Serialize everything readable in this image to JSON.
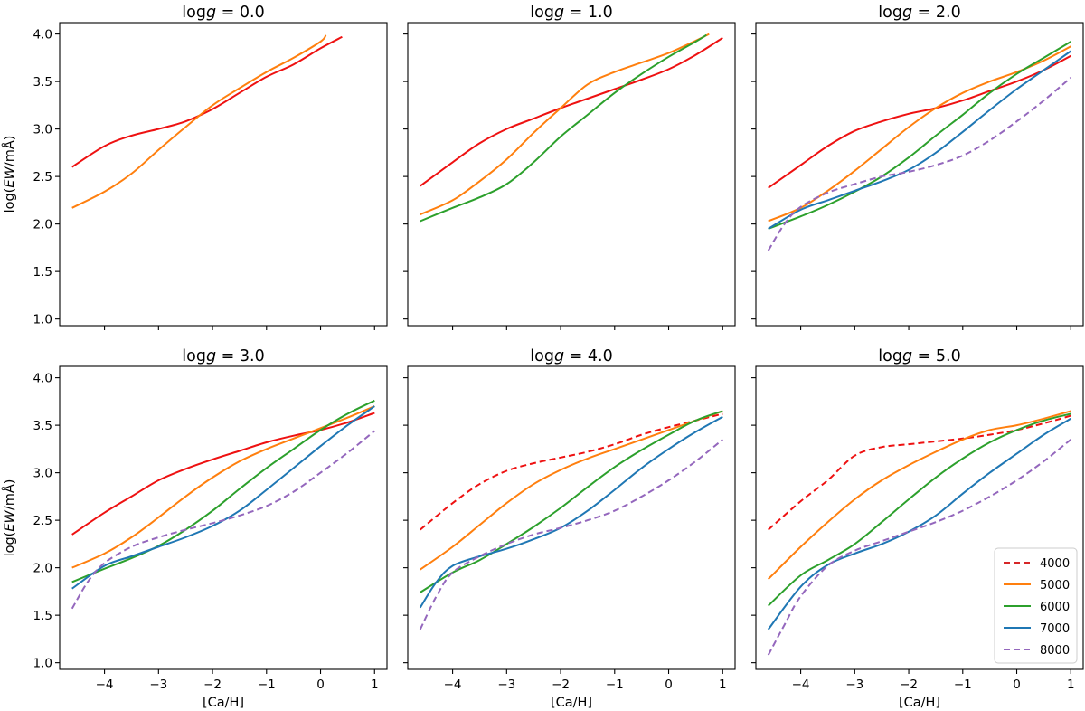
{
  "figure": {
    "x_axis_label": "[Ca/H]",
    "y_axis_label": "log(EW/mÅ)",
    "y_axis_label_parts": [
      "log(",
      "EW",
      "/mÅ)"
    ]
  },
  "legend": {
    "placement": "lower-right of bottom-right panel",
    "entries": [
      {
        "label": "4000",
        "color": "#d62728",
        "style": "dashed"
      },
      {
        "label": "5000",
        "color": "#ff7f0e",
        "style": "solid"
      },
      {
        "label": "6000",
        "color": "#2ca02c",
        "style": "solid"
      },
      {
        "label": "7000",
        "color": "#1f77b4",
        "style": "solid"
      },
      {
        "label": "8000",
        "color": "#9467bd",
        "style": "dashed"
      }
    ]
  },
  "chart_data": [
    {
      "type": "line",
      "title": "log g = 0.0",
      "title_parts": [
        "log",
        "g",
        " = 0.0"
      ],
      "xlabel": "",
      "ylabel": "log(EW/mÅ)",
      "xlim": [
        -4.83,
        1.23
      ],
      "ylim": [
        0.93,
        4.12
      ],
      "xticks": [
        -4,
        -3,
        -2,
        -1,
        0,
        1
      ],
      "xtick_labels": [],
      "yticks": [
        1.0,
        1.5,
        2.0,
        2.5,
        3.0,
        3.5,
        4.0
      ],
      "ytick_labels": [
        "1.0",
        "1.5",
        "2.0",
        "2.5",
        "3.0",
        "3.5",
        "4.0"
      ],
      "series": [
        {
          "name": "4000",
          "color": "#ee1111",
          "dash": false,
          "x": [
            -4.6,
            -4.0,
            -3.5,
            -3.0,
            -2.5,
            -2.0,
            -1.5,
            -1.0,
            -0.5,
            0.0,
            0.4
          ],
          "y": [
            2.6,
            2.82,
            2.93,
            3.0,
            3.08,
            3.21,
            3.38,
            3.55,
            3.68,
            3.85,
            3.97
          ]
        },
        {
          "name": "5000",
          "color": "#ff7f0e",
          "dash": false,
          "x": [
            -4.6,
            -4.0,
            -3.5,
            -3.0,
            -2.5,
            -2.0,
            -1.5,
            -1.0,
            -0.5,
            0.0,
            0.1
          ],
          "y": [
            2.17,
            2.34,
            2.53,
            2.78,
            3.02,
            3.25,
            3.43,
            3.6,
            3.75,
            3.92,
            3.99
          ]
        }
      ]
    },
    {
      "type": "line",
      "title": "log g = 1.0",
      "title_parts": [
        "log",
        "g",
        " = 1.0"
      ],
      "xlabel": "",
      "ylabel": "",
      "xlim": [
        -4.83,
        1.23
      ],
      "ylim": [
        0.93,
        4.12
      ],
      "xticks": [
        -4,
        -3,
        -2,
        -1,
        0,
        1
      ],
      "xtick_labels": [],
      "yticks": [
        1.0,
        1.5,
        2.0,
        2.5,
        3.0,
        3.5,
        4.0
      ],
      "ytick_labels": [],
      "series": [
        {
          "name": "4000",
          "color": "#ee1111",
          "dash": false,
          "x": [
            -4.6,
            -4.0,
            -3.5,
            -3.0,
            -2.5,
            -2.0,
            -1.5,
            -1.0,
            -0.5,
            0.0,
            0.5,
            1.0
          ],
          "y": [
            2.4,
            2.65,
            2.85,
            3.0,
            3.11,
            3.22,
            3.32,
            3.42,
            3.52,
            3.63,
            3.78,
            3.96
          ]
        },
        {
          "name": "5000",
          "color": "#ff7f0e",
          "dash": false,
          "x": [
            -4.6,
            -4.0,
            -3.5,
            -3.0,
            -2.5,
            -2.0,
            -1.5,
            -1.0,
            -0.5,
            0.0,
            0.5,
            0.75
          ],
          "y": [
            2.1,
            2.25,
            2.45,
            2.68,
            2.96,
            3.22,
            3.47,
            3.6,
            3.7,
            3.8,
            3.93,
            4.0
          ]
        },
        {
          "name": "6000",
          "color": "#2ca02c",
          "dash": false,
          "x": [
            -4.6,
            -4.0,
            -3.5,
            -3.0,
            -2.5,
            -2.0,
            -1.5,
            -1.0,
            -0.5,
            0.0,
            0.5,
            0.7
          ],
          "y": [
            2.03,
            2.17,
            2.28,
            2.42,
            2.65,
            2.92,
            3.15,
            3.38,
            3.58,
            3.76,
            3.92,
            3.99
          ]
        }
      ]
    },
    {
      "type": "line",
      "title": "log g = 2.0",
      "title_parts": [
        "log",
        "g",
        " = 2.0"
      ],
      "xlabel": "",
      "ylabel": "",
      "xlim": [
        -4.83,
        1.23
      ],
      "ylim": [
        0.93,
        4.12
      ],
      "xticks": [
        -4,
        -3,
        -2,
        -1,
        0,
        1
      ],
      "xtick_labels": [],
      "yticks": [
        1.0,
        1.5,
        2.0,
        2.5,
        3.0,
        3.5,
        4.0
      ],
      "ytick_labels": [],
      "series": [
        {
          "name": "4000",
          "color": "#ee1111",
          "dash": false,
          "x": [
            -4.6,
            -4.0,
            -3.5,
            -3.0,
            -2.5,
            -2.0,
            -1.5,
            -1.0,
            -0.5,
            0.0,
            0.5,
            1.0
          ],
          "y": [
            2.38,
            2.62,
            2.82,
            2.98,
            3.08,
            3.16,
            3.22,
            3.3,
            3.4,
            3.5,
            3.62,
            3.77
          ]
        },
        {
          "name": "5000",
          "color": "#ff7f0e",
          "dash": false,
          "x": [
            -4.6,
            -4.0,
            -3.5,
            -3.0,
            -2.5,
            -2.0,
            -1.5,
            -1.0,
            -0.5,
            0.0,
            0.5,
            1.0
          ],
          "y": [
            2.03,
            2.17,
            2.35,
            2.56,
            2.79,
            3.02,
            3.22,
            3.38,
            3.5,
            3.6,
            3.72,
            3.87
          ]
        },
        {
          "name": "6000",
          "color": "#2ca02c",
          "dash": false,
          "x": [
            -4.6,
            -4.0,
            -3.5,
            -3.0,
            -2.5,
            -2.0,
            -1.5,
            -1.0,
            -0.5,
            0.0,
            0.5,
            1.0
          ],
          "y": [
            1.95,
            2.08,
            2.2,
            2.34,
            2.5,
            2.7,
            2.93,
            3.15,
            3.38,
            3.58,
            3.75,
            3.92
          ]
        },
        {
          "name": "7000",
          "color": "#1f77b4",
          "dash": false,
          "x": [
            -4.6,
            -4.0,
            -3.5,
            -3.0,
            -2.5,
            -2.0,
            -1.5,
            -1.0,
            -0.5,
            0.0,
            0.5,
            1.0
          ],
          "y": [
            1.95,
            2.15,
            2.25,
            2.35,
            2.45,
            2.57,
            2.75,
            2.97,
            3.2,
            3.42,
            3.62,
            3.82
          ]
        },
        {
          "name": "8000",
          "color": "#9467bd",
          "dash": true,
          "x": [
            -4.6,
            -4.3,
            -4.0,
            -3.5,
            -3.0,
            -2.5,
            -2.0,
            -1.5,
            -1.0,
            -0.5,
            0.0,
            0.5,
            1.0
          ],
          "y": [
            1.72,
            2.0,
            2.18,
            2.33,
            2.42,
            2.5,
            2.55,
            2.62,
            2.72,
            2.88,
            3.08,
            3.3,
            3.54
          ]
        }
      ]
    },
    {
      "type": "line",
      "title": "log g = 3.0",
      "title_parts": [
        "log",
        "g",
        " = 3.0"
      ],
      "xlabel": "[Ca/H]",
      "ylabel": "log(EW/mÅ)",
      "xlim": [
        -4.83,
        1.23
      ],
      "ylim": [
        0.93,
        4.12
      ],
      "xticks": [
        -4,
        -3,
        -2,
        -1,
        0,
        1
      ],
      "xtick_labels": [
        "−4",
        "−3",
        "−2",
        "−1",
        "0",
        "1"
      ],
      "yticks": [
        1.0,
        1.5,
        2.0,
        2.5,
        3.0,
        3.5,
        4.0
      ],
      "ytick_labels": [
        "1.0",
        "1.5",
        "2.0",
        "2.5",
        "3.0",
        "3.5",
        "4.0"
      ],
      "series": [
        {
          "name": "4000",
          "color": "#ee1111",
          "dash": false,
          "x": [
            -4.6,
            -4.0,
            -3.5,
            -3.0,
            -2.5,
            -2.0,
            -1.5,
            -1.0,
            -0.5,
            0.0,
            0.5,
            1.0
          ],
          "y": [
            2.35,
            2.58,
            2.75,
            2.92,
            3.04,
            3.14,
            3.23,
            3.32,
            3.39,
            3.45,
            3.53,
            3.63
          ]
        },
        {
          "name": "5000",
          "color": "#ff7f0e",
          "dash": false,
          "x": [
            -4.6,
            -4.0,
            -3.5,
            -3.0,
            -2.5,
            -2.0,
            -1.5,
            -1.0,
            -0.5,
            0.0,
            0.5,
            1.0
          ],
          "y": [
            2.0,
            2.15,
            2.32,
            2.53,
            2.75,
            2.95,
            3.12,
            3.25,
            3.36,
            3.47,
            3.58,
            3.7
          ]
        },
        {
          "name": "6000",
          "color": "#2ca02c",
          "dash": false,
          "x": [
            -4.6,
            -4.0,
            -3.5,
            -3.0,
            -2.5,
            -2.0,
            -1.5,
            -1.0,
            -0.5,
            0.0,
            0.5,
            1.0
          ],
          "y": [
            1.85,
            1.99,
            2.1,
            2.23,
            2.4,
            2.6,
            2.83,
            3.05,
            3.25,
            3.45,
            3.62,
            3.76
          ]
        },
        {
          "name": "7000",
          "color": "#1f77b4",
          "dash": false,
          "x": [
            -4.6,
            -4.0,
            -3.5,
            -3.0,
            -2.5,
            -2.0,
            -1.5,
            -1.0,
            -0.5,
            0.0,
            0.5,
            1.0
          ],
          "y": [
            1.78,
            2.02,
            2.12,
            2.22,
            2.32,
            2.44,
            2.6,
            2.82,
            3.05,
            3.28,
            3.5,
            3.7
          ]
        },
        {
          "name": "8000",
          "color": "#9467bd",
          "dash": true,
          "x": [
            -4.6,
            -4.3,
            -4.0,
            -3.5,
            -3.0,
            -2.5,
            -2.0,
            -1.5,
            -1.0,
            -0.5,
            0.0,
            0.5,
            1.0
          ],
          "y": [
            1.57,
            1.86,
            2.05,
            2.22,
            2.32,
            2.4,
            2.47,
            2.55,
            2.65,
            2.8,
            3.0,
            3.21,
            3.44
          ]
        }
      ]
    },
    {
      "type": "line",
      "title": "log g = 4.0",
      "title_parts": [
        "log",
        "g",
        " = 4.0"
      ],
      "xlabel": "[Ca/H]",
      "ylabel": "",
      "xlim": [
        -4.83,
        1.23
      ],
      "ylim": [
        0.93,
        4.12
      ],
      "xticks": [
        -4,
        -3,
        -2,
        -1,
        0,
        1
      ],
      "xtick_labels": [
        "−4",
        "−3",
        "−2",
        "−1",
        "0",
        "1"
      ],
      "yticks": [
        1.0,
        1.5,
        2.0,
        2.5,
        3.0,
        3.5,
        4.0
      ],
      "ytick_labels": [],
      "series": [
        {
          "name": "4000",
          "color": "#ee1111",
          "dash": true,
          "x": [
            -4.6,
            -4.0,
            -3.5,
            -3.0,
            -2.5,
            -2.0,
            -1.5,
            -1.0,
            -0.5,
            0.0,
            0.5,
            1.0
          ],
          "y": [
            2.4,
            2.68,
            2.88,
            3.02,
            3.1,
            3.16,
            3.22,
            3.3,
            3.4,
            3.48,
            3.55,
            3.62
          ]
        },
        {
          "name": "5000",
          "color": "#ff7f0e",
          "dash": false,
          "x": [
            -4.6,
            -4.0,
            -3.5,
            -3.0,
            -2.5,
            -2.0,
            -1.5,
            -1.0,
            -0.5,
            0.0,
            0.5,
            1.0
          ],
          "y": [
            1.98,
            2.22,
            2.45,
            2.68,
            2.88,
            3.03,
            3.15,
            3.25,
            3.35,
            3.45,
            3.55,
            3.65
          ]
        },
        {
          "name": "6000",
          "color": "#2ca02c",
          "dash": false,
          "x": [
            -4.6,
            -4.0,
            -3.5,
            -3.0,
            -2.5,
            -2.0,
            -1.5,
            -1.0,
            -0.5,
            0.0,
            0.5,
            1.0
          ],
          "y": [
            1.74,
            1.95,
            2.08,
            2.25,
            2.43,
            2.63,
            2.85,
            3.06,
            3.24,
            3.4,
            3.55,
            3.65
          ]
        },
        {
          "name": "7000",
          "color": "#1f77b4",
          "dash": false,
          "x": [
            -4.6,
            -4.3,
            -4.0,
            -3.5,
            -3.0,
            -2.5,
            -2.0,
            -1.5,
            -1.0,
            -0.5,
            0.0,
            0.5,
            1.0
          ],
          "y": [
            1.58,
            1.85,
            2.02,
            2.12,
            2.2,
            2.3,
            2.42,
            2.6,
            2.82,
            3.05,
            3.25,
            3.43,
            3.59
          ]
        },
        {
          "name": "8000",
          "color": "#9467bd",
          "dash": true,
          "x": [
            -4.6,
            -4.3,
            -4.0,
            -3.5,
            -3.0,
            -2.5,
            -2.0,
            -1.5,
            -1.0,
            -0.5,
            0.0,
            0.5,
            1.0
          ],
          "y": [
            1.35,
            1.7,
            1.95,
            2.12,
            2.25,
            2.35,
            2.42,
            2.5,
            2.6,
            2.75,
            2.92,
            3.12,
            3.35
          ]
        }
      ]
    },
    {
      "type": "line",
      "title": "log g = 5.0",
      "title_parts": [
        "log",
        "g",
        " = 5.0"
      ],
      "xlabel": "[Ca/H]",
      "ylabel": "",
      "xlim": [
        -4.83,
        1.23
      ],
      "ylim": [
        0.93,
        4.12
      ],
      "xticks": [
        -4,
        -3,
        -2,
        -1,
        0,
        1
      ],
      "xtick_labels": [
        "−4",
        "−3",
        "−2",
        "−1",
        "0",
        "1"
      ],
      "yticks": [
        1.0,
        1.5,
        2.0,
        2.5,
        3.0,
        3.5,
        4.0
      ],
      "ytick_labels": [],
      "series": [
        {
          "name": "4000",
          "color": "#ee1111",
          "dash": true,
          "x": [
            -4.6,
            -4.0,
            -3.5,
            -3.0,
            -2.5,
            -2.0,
            -1.5,
            -1.0,
            -0.5,
            0.0,
            0.5,
            1.0
          ],
          "y": [
            2.4,
            2.7,
            2.92,
            3.18,
            3.27,
            3.3,
            3.33,
            3.36,
            3.4,
            3.45,
            3.52,
            3.6
          ]
        },
        {
          "name": "5000",
          "color": "#ff7f0e",
          "dash": false,
          "x": [
            -4.6,
            -4.0,
            -3.5,
            -3.0,
            -2.5,
            -2.0,
            -1.5,
            -1.0,
            -0.5,
            0.0,
            0.5,
            1.0
          ],
          "y": [
            1.88,
            2.22,
            2.48,
            2.72,
            2.92,
            3.08,
            3.22,
            3.35,
            3.45,
            3.5,
            3.57,
            3.65
          ]
        },
        {
          "name": "6000",
          "color": "#2ca02c",
          "dash": false,
          "x": [
            -4.6,
            -4.0,
            -3.5,
            -3.0,
            -2.5,
            -2.0,
            -1.5,
            -1.0,
            -0.5,
            0.0,
            0.5,
            1.0
          ],
          "y": [
            1.6,
            1.92,
            2.08,
            2.25,
            2.48,
            2.72,
            2.95,
            3.15,
            3.32,
            3.45,
            3.55,
            3.62
          ]
        },
        {
          "name": "7000",
          "color": "#1f77b4",
          "dash": false,
          "x": [
            -4.6,
            -4.0,
            -3.5,
            -3.0,
            -2.5,
            -2.0,
            -1.5,
            -1.0,
            -0.5,
            0.0,
            0.5,
            1.0
          ],
          "y": [
            1.35,
            1.8,
            2.03,
            2.15,
            2.25,
            2.38,
            2.55,
            2.78,
            3.0,
            3.2,
            3.4,
            3.57
          ]
        },
        {
          "name": "8000",
          "color": "#9467bd",
          "dash": true,
          "x": [
            -4.6,
            -4.3,
            -4.0,
            -3.5,
            -3.0,
            -2.5,
            -2.0,
            -1.5,
            -1.0,
            -0.5,
            0.0,
            0.5,
            1.0
          ],
          "y": [
            1.08,
            1.4,
            1.7,
            2.02,
            2.18,
            2.28,
            2.38,
            2.48,
            2.6,
            2.75,
            2.92,
            3.12,
            3.35
          ]
        }
      ]
    }
  ]
}
